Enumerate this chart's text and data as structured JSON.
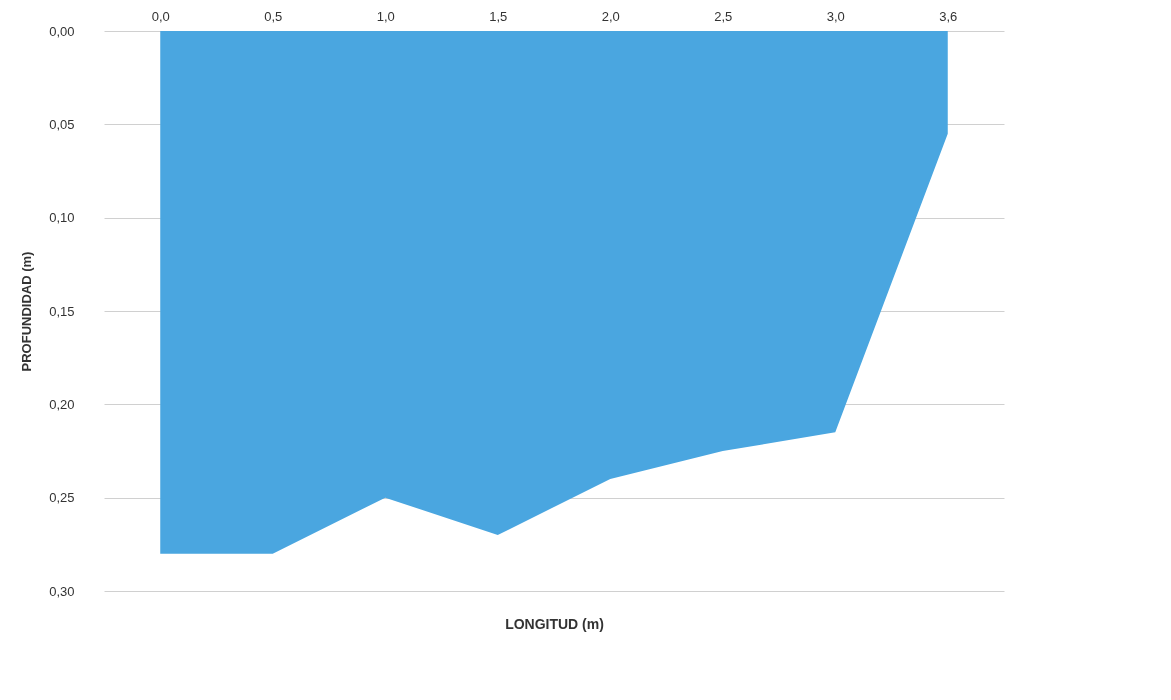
{
  "chart_data": {
    "type": "area",
    "xlabel": "LONGITUD (m)",
    "ylabel": "PROFUNDIDAD (m)",
    "categories": [
      "0,0",
      "0,5",
      "1,0",
      "1,5",
      "2,0",
      "2,5",
      "3,0",
      "3,6"
    ],
    "values": [
      0.28,
      0.28,
      0.25,
      0.27,
      0.24,
      0.225,
      0.215,
      0.055
    ],
    "color": "#4aa6e0",
    "ylim": [
      0.3,
      0
    ],
    "yticks": [
      {
        "value": 0,
        "label": "0,00"
      },
      {
        "value": 0.05,
        "label": "0,05"
      },
      {
        "value": 0.1,
        "label": "0,10"
      },
      {
        "value": 0.15,
        "label": "0,15"
      },
      {
        "value": 0.2,
        "label": "0,20"
      },
      {
        "value": 0.25,
        "label": "0,25"
      },
      {
        "value": 0.3,
        "label": "0,30"
      }
    ],
    "grid": "y"
  }
}
